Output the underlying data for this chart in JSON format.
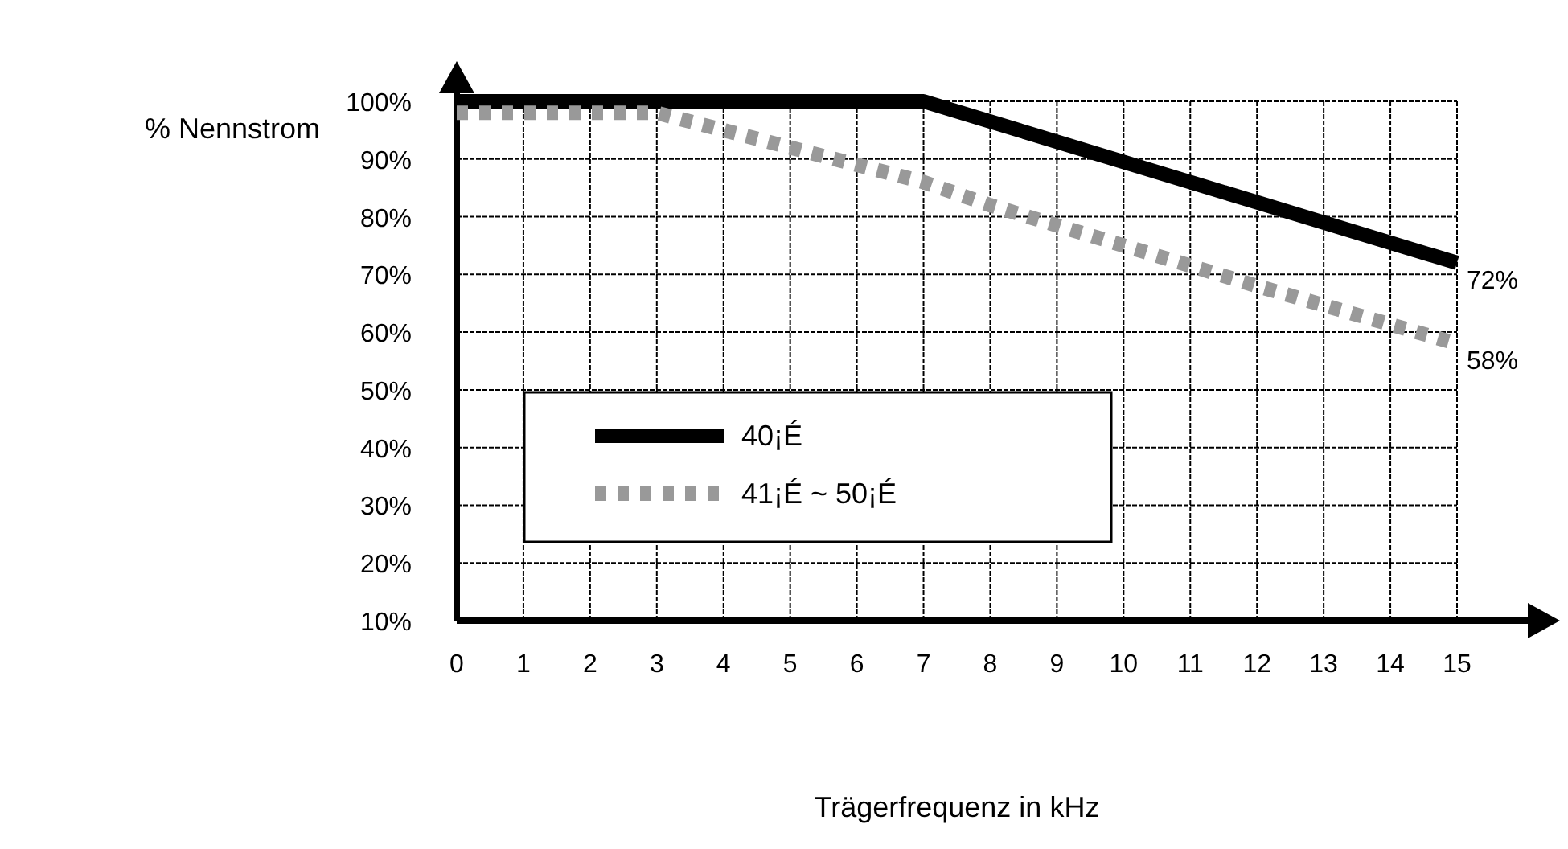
{
  "chart_data": {
    "type": "line",
    "xlabel": "Trägerfrequenz in kHz",
    "ylabel": "% Nennstrom",
    "xlim": [
      0,
      15
    ],
    "xticks": [
      0,
      1,
      2,
      3,
      4,
      5,
      6,
      7,
      8,
      9,
      10,
      11,
      12,
      13,
      14,
      15
    ],
    "ylim": [
      10,
      100
    ],
    "yticks": [
      {
        "value": 10,
        "label": "10%"
      },
      {
        "value": 20,
        "label": "20%"
      },
      {
        "value": 30,
        "label": "30%"
      },
      {
        "value": 40,
        "label": "40%"
      },
      {
        "value": 50,
        "label": "50%"
      },
      {
        "value": 60,
        "label": "60%"
      },
      {
        "value": 70,
        "label": "70%"
      },
      {
        "value": 80,
        "label": "80%"
      },
      {
        "value": 90,
        "label": "90%"
      },
      {
        "value": 100,
        "label": "100%"
      }
    ],
    "series": [
      {
        "name": "40¡É",
        "color": "#000000",
        "x": [
          0,
          7,
          15
        ],
        "values": [
          100,
          100,
          72
        ],
        "line_style": "solid"
      },
      {
        "name": "41¡É ~ 50¡É",
        "color": "#999999",
        "x": [
          0,
          3,
          5,
          7,
          8,
          10,
          12,
          15
        ],
        "values": [
          98,
          98,
          92,
          86,
          82,
          75,
          68,
          58
        ],
        "line_style": "dotted"
      }
    ],
    "annotations": [
      {
        "text": "72%",
        "x": 15,
        "y": 72
      },
      {
        "text": "58%",
        "x": 15,
        "y": 58
      }
    ],
    "grid": true,
    "legend": "left"
  }
}
